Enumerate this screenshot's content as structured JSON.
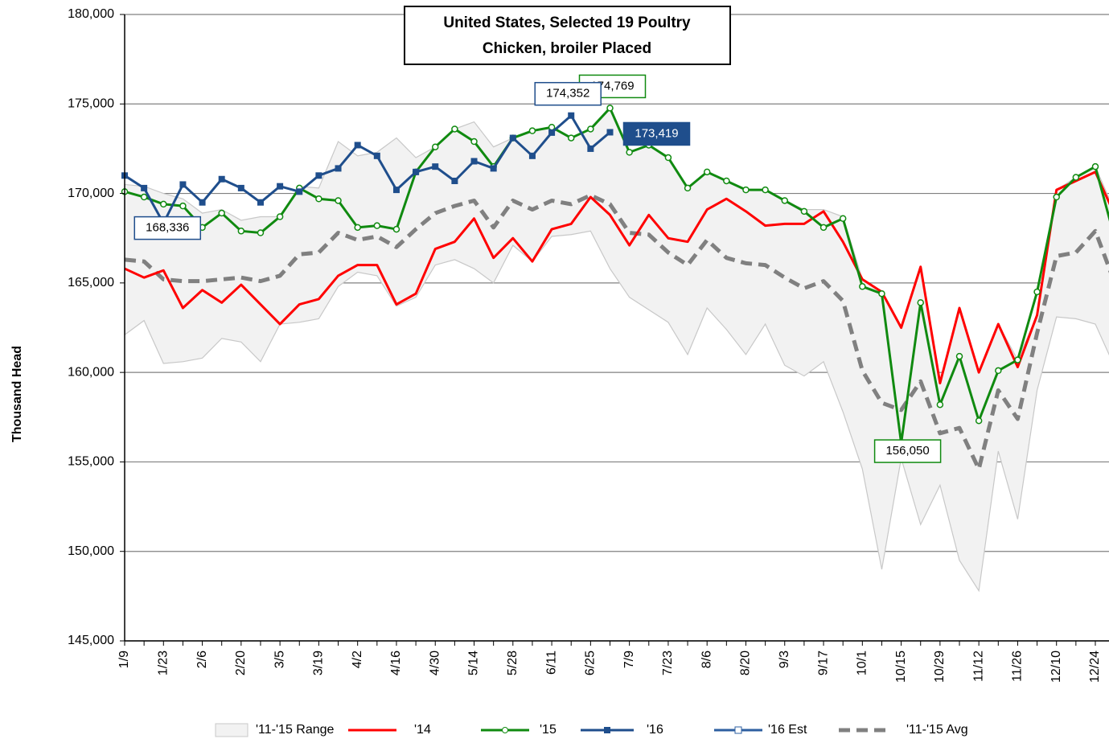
{
  "chart_data": {
    "type": "line",
    "title": [
      "United States, Selected 19 Poultry",
      "Chicken, broiler Placed"
    ],
    "y_label": "Thousand Head",
    "categories": [
      "1/9",
      null,
      "1/23",
      null,
      "2/6",
      null,
      "2/20",
      null,
      "3/5",
      null,
      "3/19",
      null,
      "4/2",
      null,
      "4/16",
      null,
      "4/30",
      null,
      "5/14",
      null,
      "5/28",
      null,
      "6/11",
      null,
      "6/25",
      null,
      "7/9",
      null,
      "7/23",
      null,
      "8/6",
      null,
      "8/20",
      null,
      "9/3",
      null,
      "9/17",
      null,
      "10/1",
      null,
      "10/15",
      null,
      "10/29",
      null,
      "11/12",
      null,
      "11/26",
      null,
      "12/10",
      null,
      "12/24",
      null
    ],
    "ylim": [
      145000,
      180000
    ],
    "yticks": [
      {
        "value": 145000,
        "label": "145,000"
      },
      {
        "value": 150000,
        "label": "150,000"
      },
      {
        "value": 155000,
        "label": "155,000"
      },
      {
        "value": 160000,
        "label": "160,000"
      },
      {
        "value": 165000,
        "label": "165,000"
      },
      {
        "value": 170000,
        "label": "170,000"
      },
      {
        "value": 175000,
        "label": "175,000"
      },
      {
        "value": 180000,
        "label": "180,000"
      }
    ],
    "grid": true,
    "legend": "bottom",
    "range": {
      "name": "'11-'15 Range",
      "color": "#f2f2f2",
      "max": [
        170500,
        170400,
        170000,
        169700,
        168900,
        169100,
        168500,
        168700,
        168700,
        170400,
        170300,
        172900,
        172100,
        172300,
        173100,
        172000,
        172600,
        173600,
        174000,
        172600,
        173100,
        173500,
        173700,
        173100,
        173600,
        174769,
        172300,
        172700,
        172000,
        170300,
        171200,
        170700,
        170200,
        170200,
        169600,
        169100,
        169100,
        168700,
        165200,
        164500,
        162500,
        165900,
        159400,
        163600,
        160000,
        162700,
        160700,
        163200,
        170200,
        170900,
        171500,
        169000
      ],
      "min": [
        162100,
        162900,
        160500,
        160600,
        160800,
        161900,
        161700,
        160600,
        162700,
        162800,
        163000,
        164800,
        165600,
        165400,
        163700,
        164200,
        166000,
        166300,
        165800,
        165000,
        167100,
        166200,
        167600,
        167700,
        167900,
        165800,
        164200,
        163500,
        162800,
        161000,
        163600,
        162400,
        161000,
        162700,
        160400,
        159800,
        160600,
        157800,
        154600,
        149000,
        155200,
        151500,
        153700,
        149500,
        147800,
        155600,
        151800,
        159000,
        163100,
        163000,
        162700,
        160300
      ]
    },
    "series": [
      {
        "name": "'14",
        "color": "#ff0000",
        "marker": "none",
        "dashed": false,
        "values": [
          165800,
          165300,
          165700,
          163600,
          164600,
          163900,
          164900,
          163800,
          162700,
          163800,
          164100,
          165400,
          166000,
          166000,
          163800,
          164400,
          166900,
          167300,
          168600,
          166400,
          167500,
          166200,
          168000,
          168300,
          169800,
          168800,
          167100,
          168800,
          167500,
          167300,
          169100,
          169700,
          169000,
          168200,
          168300,
          168300,
          169000,
          167300,
          165200,
          164500,
          162500,
          165900,
          159400,
          163600,
          160000,
          162700,
          160300,
          163200,
          170200,
          170700,
          171200,
          168800
        ]
      },
      {
        "name": "'15",
        "color": "#108a10",
        "marker": "circle",
        "dashed": false,
        "values": [
          170100,
          169800,
          169400,
          169300,
          168100,
          168900,
          167900,
          167800,
          168700,
          170300,
          169700,
          169600,
          168100,
          168200,
          168000,
          171200,
          172600,
          173600,
          172900,
          171500,
          173100,
          173500,
          173700,
          173100,
          173600,
          174769,
          172300,
          172700,
          172000,
          170300,
          171200,
          170700,
          170200,
          170200,
          169600,
          169000,
          168100,
          168600,
          164800,
          164400,
          156050,
          163900,
          158200,
          160900,
          157300,
          160100,
          160700,
          164500,
          169800,
          170900,
          171500,
          167500
        ],
        "value_labels": [
          null,
          null,
          null,
          null,
          null,
          null,
          null,
          null,
          null,
          null,
          null,
          null,
          null,
          null,
          null,
          null,
          null,
          null,
          null,
          null,
          null,
          null,
          null,
          null,
          null,
          "174,769",
          null,
          null,
          null,
          null,
          null,
          null,
          null,
          null,
          null,
          null,
          null,
          null,
          null,
          null,
          "156,050",
          null,
          null,
          null,
          null,
          null,
          null,
          null,
          null,
          null,
          null,
          null
        ]
      },
      {
        "name": "'16",
        "color": "#1f4e8c",
        "marker": "square",
        "dashed": false,
        "values": [
          171000,
          170300,
          168336,
          170500,
          169500,
          170800,
          170300,
          169500,
          170400,
          170100,
          171000,
          171400,
          172700,
          172100,
          170200,
          171200,
          171500,
          170700,
          171800,
          171400,
          173100,
          172100,
          173400,
          174352,
          172500,
          173419,
          null,
          null,
          null,
          null,
          null,
          null,
          null,
          null,
          null,
          null,
          null,
          null,
          null,
          null,
          null,
          null,
          null,
          null,
          null,
          null,
          null,
          null,
          null,
          null,
          null,
          null
        ],
        "value_labels": [
          null,
          null,
          "168,336",
          null,
          null,
          null,
          null,
          null,
          null,
          null,
          null,
          null,
          null,
          null,
          null,
          null,
          null,
          null,
          null,
          null,
          null,
          null,
          null,
          "174,352",
          null,
          "173,419",
          null,
          null,
          null,
          null,
          null,
          null,
          null,
          null,
          null,
          null,
          null,
          null,
          null,
          null,
          null,
          null,
          null,
          null,
          null,
          null,
          null,
          null,
          null,
          null,
          null,
          null
        ]
      },
      {
        "name": "'16 Est",
        "color": "#2e5fa0",
        "marker": "hollow-square",
        "dashed": false,
        "values": [
          null,
          null,
          null,
          null,
          null,
          null,
          null,
          null,
          null,
          null,
          null,
          null,
          null,
          null,
          null,
          null,
          null,
          null,
          null,
          null,
          null,
          null,
          null,
          null,
          null,
          null,
          null,
          null,
          null,
          null,
          null,
          null,
          null,
          null,
          null,
          null,
          null,
          null,
          null,
          null,
          null,
          null,
          null,
          null,
          null,
          null,
          null,
          null,
          null,
          null,
          null,
          null
        ]
      },
      {
        "name": "'11-'15 Avg",
        "color": "#808080",
        "marker": "none",
        "dashed": true,
        "values": [
          166300,
          166200,
          165200,
          165100,
          165100,
          165200,
          165300,
          165100,
          165400,
          166600,
          166700,
          167800,
          167400,
          167600,
          167000,
          168000,
          168900,
          169300,
          169600,
          168100,
          169600,
          169100,
          169600,
          169400,
          169900,
          169400,
          167800,
          167700,
          166700,
          166000,
          167400,
          166400,
          166100,
          166000,
          165300,
          164700,
          165100,
          164000,
          160100,
          158300,
          157900,
          159500,
          156600,
          156900,
          154600,
          159000,
          157400,
          162200,
          166500,
          166700,
          167900,
          165000
        ]
      }
    ]
  }
}
